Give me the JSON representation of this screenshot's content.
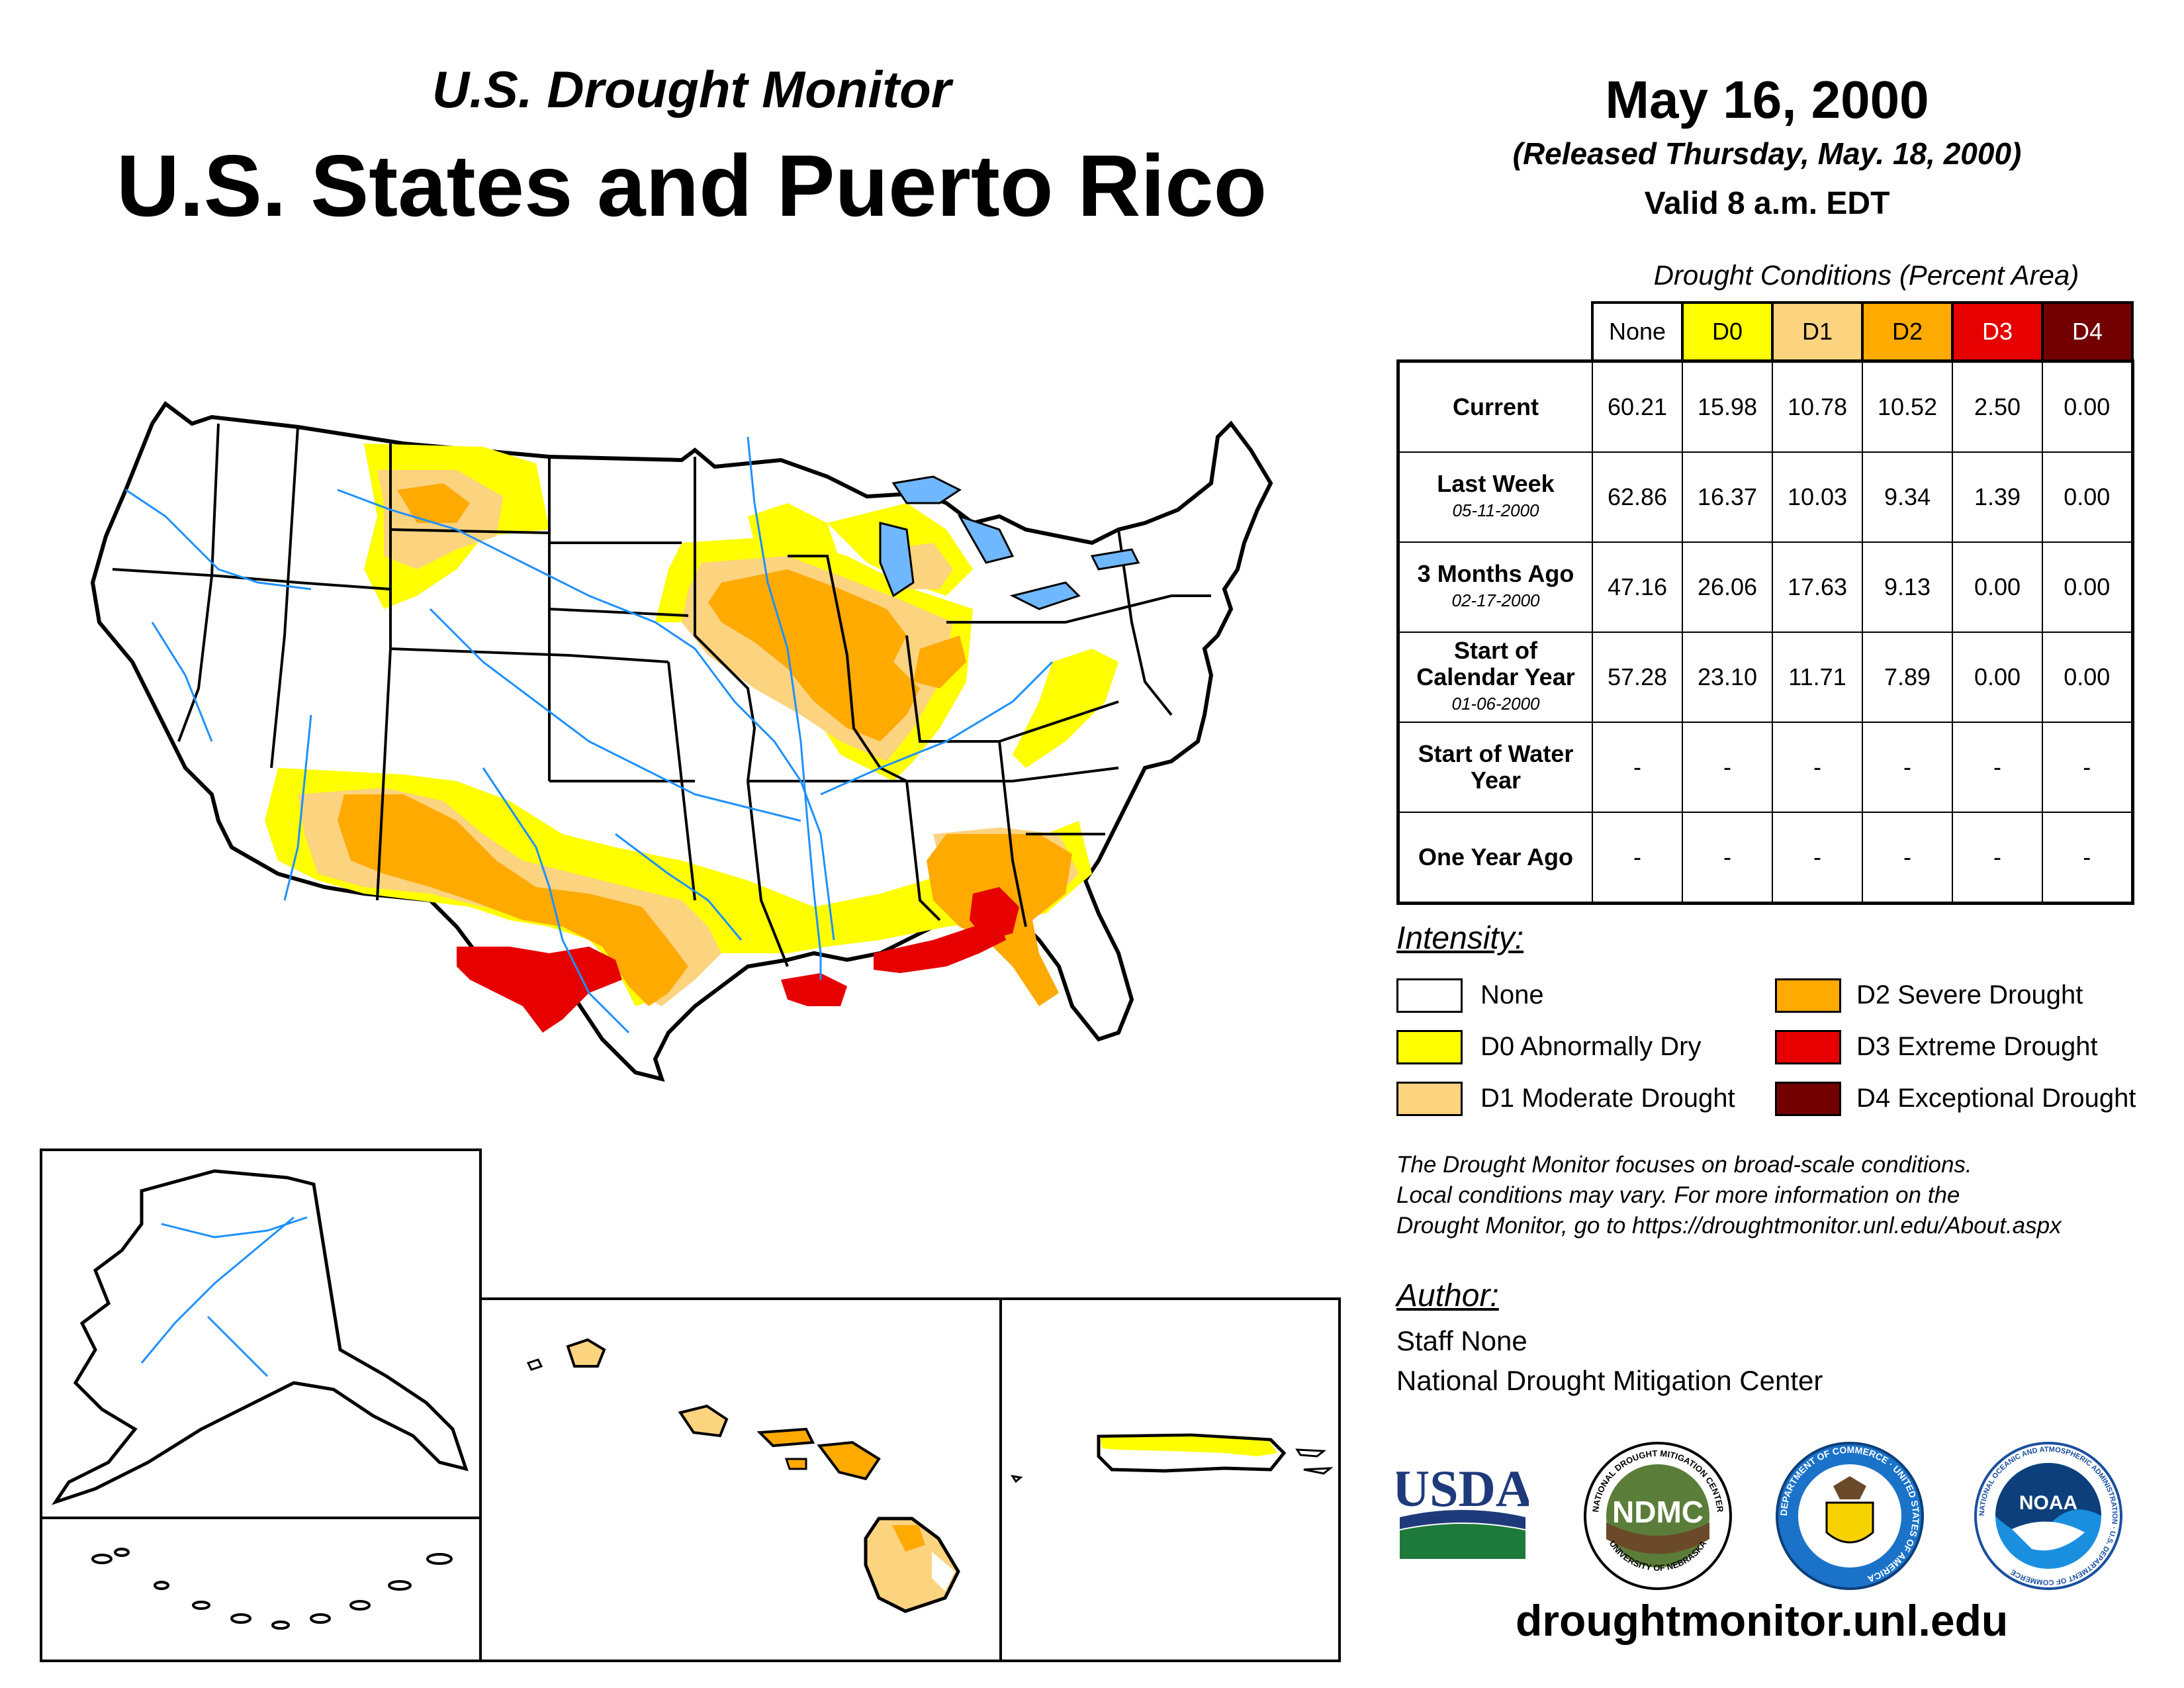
{
  "header": {
    "subtitle": "U.S. Drought Monitor",
    "title": "U.S. States and Puerto Rico",
    "date": "May 16, 2000",
    "released": "(Released Thursday, May. 18, 2000)",
    "valid": "Valid 8 a.m. EDT"
  },
  "table": {
    "caption": "Drought Conditions (Percent Area)",
    "columns": [
      "None",
      "D0",
      "D1",
      "D2",
      "D3",
      "D4"
    ],
    "column_colors": [
      "#ffffff",
      "#ffff00",
      "#fcd37f",
      "#ffaa00",
      "#e60000",
      "#730000"
    ],
    "rows": [
      {
        "label": "Current",
        "sub": "",
        "values": [
          "60.21",
          "15.98",
          "10.78",
          "10.52",
          "2.50",
          "0.00"
        ]
      },
      {
        "label": "Last Week",
        "sub": "05-11-2000",
        "values": [
          "62.86",
          "16.37",
          "10.03",
          "9.34",
          "1.39",
          "0.00"
        ]
      },
      {
        "label": "3 Months Ago",
        "sub": "02-17-2000",
        "values": [
          "47.16",
          "26.06",
          "17.63",
          "9.13",
          "0.00",
          "0.00"
        ]
      },
      {
        "label": "Start of Calendar Year",
        "sub": "01-06-2000",
        "values": [
          "57.28",
          "23.10",
          "11.71",
          "7.89",
          "0.00",
          "0.00"
        ]
      },
      {
        "label": "Start of Water Year",
        "sub": "",
        "values": [
          "-",
          "-",
          "-",
          "-",
          "-",
          "-"
        ]
      },
      {
        "label": "One Year Ago",
        "sub": "",
        "values": [
          "-",
          "-",
          "-",
          "-",
          "-",
          "-"
        ]
      }
    ]
  },
  "legend": {
    "title": "Intensity:",
    "items": [
      {
        "label": "None",
        "color": "#ffffff"
      },
      {
        "label": "D0 Abnormally Dry",
        "color": "#ffff00"
      },
      {
        "label": "D1 Moderate Drought",
        "color": "#fcd37f"
      },
      {
        "label": "D2 Severe Drought",
        "color": "#ffaa00"
      },
      {
        "label": "D3 Extreme Drought",
        "color": "#e60000"
      },
      {
        "label": "D4 Exceptional Drought",
        "color": "#730000"
      }
    ]
  },
  "note": {
    "line1": "The Drought Monitor focuses on broad-scale conditions.",
    "line2": "Local conditions may vary. For more information on the",
    "line3": "Drought Monitor, go to https://droughtmonitor.unl.edu/About.aspx"
  },
  "author": {
    "title": "Author:",
    "name": "Staff None",
    "org": "National Drought Mitigation Center"
  },
  "logos": {
    "usda": "USDA",
    "ndmc": "NDMC",
    "ndmc_ring_top": "NATIONAL DROUGHT MITIGATION CENTER",
    "ndmc_ring_bottom": "UNIVERSITY OF NEBRASKA",
    "commerce_ring": "DEPARTMENT OF COMMERCE · UNITED STATES OF AMERICA",
    "noaa": "NOAA",
    "noaa_ring": "NATIONAL OCEANIC AND ATMOSPHERIC ADMINISTRATION · U.S. DEPARTMENT OF COMMERCE"
  },
  "footer": {
    "url": "droughtmonitor.unl.edu"
  },
  "map": {
    "regions": "contiguous U.S., Alaska, Hawaii, Puerto Rico",
    "river_color": "#1e90ff"
  }
}
